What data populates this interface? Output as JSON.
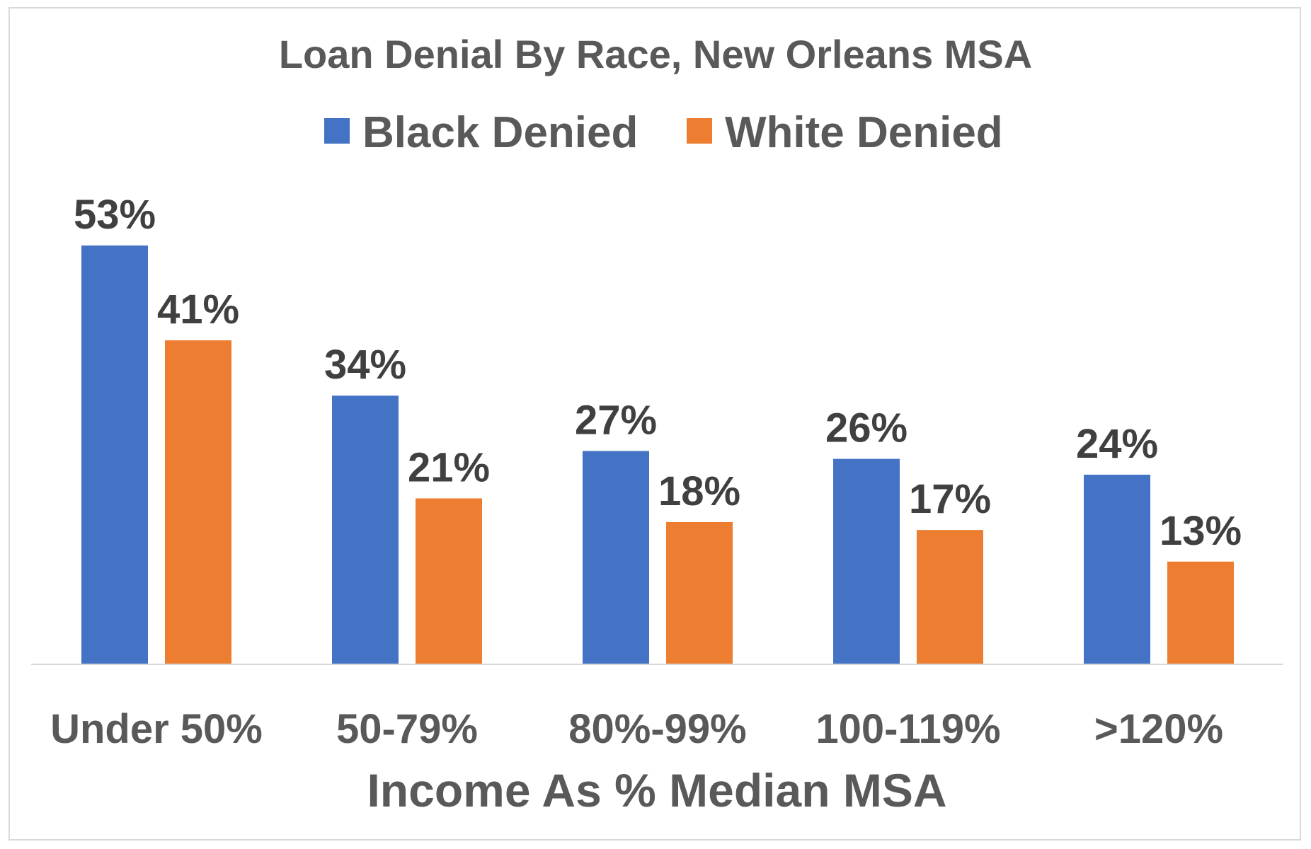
{
  "chart_data": {
    "type": "bar",
    "title": "Loan Denial By Race, New Orleans MSA",
    "xlabel": "Income As % Median MSA",
    "ylabel": "",
    "categories": [
      "Under 50%",
      "50-79%",
      "80%-99%",
      "100-119%",
      ">120%"
    ],
    "series": [
      {
        "name": "Black Denied",
        "values": [
          53,
          34,
          27,
          26,
          24
        ],
        "labels": [
          "53%",
          "34%",
          "27%",
          "26%",
          "24%"
        ],
        "color": "#4472C4"
      },
      {
        "name": "White Denied",
        "values": [
          41,
          21,
          18,
          17,
          13
        ],
        "labels": [
          "41%",
          "21%",
          "18%",
          "17%",
          "13%"
        ],
        "color": "#ED7D31"
      }
    ],
    "ylim": [
      0,
      53
    ],
    "legend": "top",
    "grid": false,
    "axis_color": "#d9d9d9"
  }
}
